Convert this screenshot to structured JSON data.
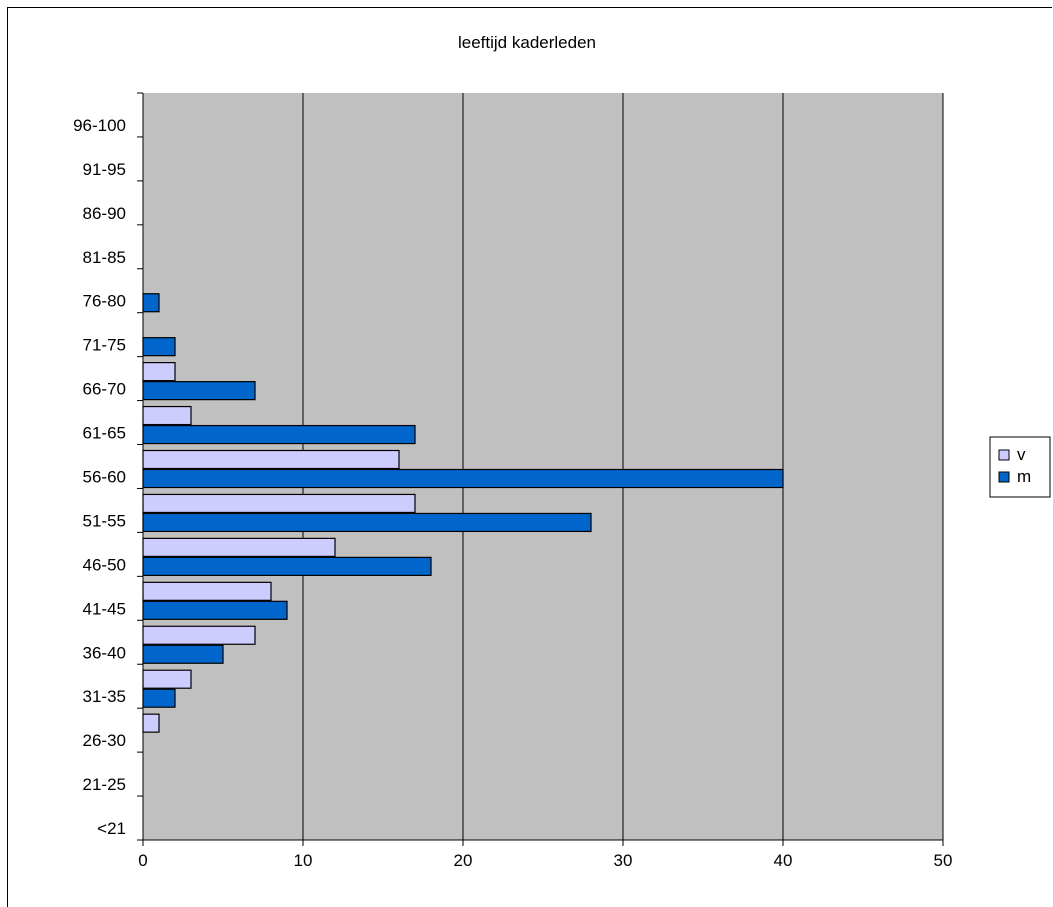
{
  "chart_data": {
    "type": "bar",
    "orientation": "horizontal",
    "title": "leeftijd kaderleden",
    "categories": [
      "<21",
      "21-25",
      "26-30",
      "31-35",
      "36-40",
      "41-45",
      "46-50",
      "51-55",
      "56-60",
      "61-65",
      "66-70",
      "71-75",
      "76-80",
      "81-85",
      "86-90",
      "91-95",
      "96-100"
    ],
    "series": [
      {
        "name": "v",
        "color": "#ccccff",
        "values": [
          0,
          0,
          1,
          3,
          7,
          8,
          12,
          17,
          16,
          3,
          2,
          0,
          0,
          0,
          0,
          0,
          0
        ]
      },
      {
        "name": "m",
        "color": "#0066cc",
        "values": [
          0,
          0,
          0,
          2,
          5,
          9,
          18,
          28,
          40,
          17,
          7,
          2,
          1,
          0,
          0,
          0,
          0
        ]
      }
    ],
    "xlim": [
      0,
      50
    ],
    "xticks": [
      "0",
      "10",
      "20",
      "30",
      "40",
      "50"
    ],
    "plot_background": "#c0c0c0",
    "grid": true,
    "legend_position": "right"
  }
}
